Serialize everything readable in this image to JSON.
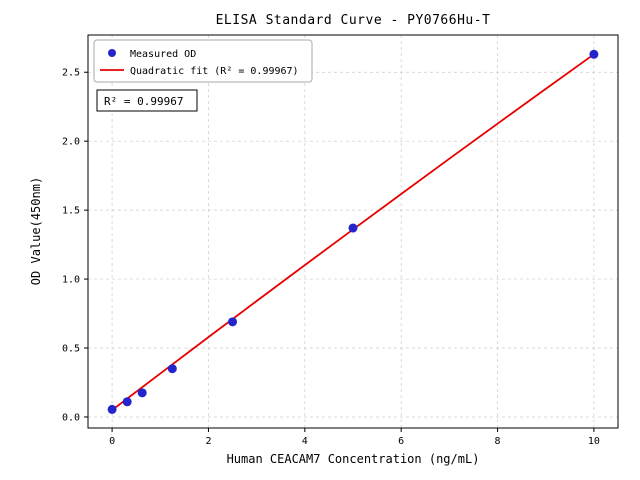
{
  "chart_data": {
    "type": "scatter",
    "title": "ELISA Standard Curve - PY0766Hu-T",
    "xlabel": "Human CEACAM7 Concentration (ng/mL)",
    "ylabel": "OD Value(450nm)",
    "xlim": [
      -0.5,
      10.5
    ],
    "ylim": [
      -0.08,
      2.77
    ],
    "x_ticks": [
      0,
      2,
      4,
      6,
      8,
      10
    ],
    "y_ticks": [
      0.0,
      0.5,
      1.0,
      1.5,
      2.0,
      2.5
    ],
    "grid": true,
    "grid_style": "dashed",
    "annotation": "R² = 0.99967",
    "colors": {
      "points": "#2424cc",
      "fit_line": "#e80000",
      "grid": "#cccccc",
      "frame": "#000000"
    },
    "legend": {
      "position": "upper-left",
      "entries": [
        {
          "label": "Measured OD",
          "marker": "dot",
          "color": "#2424cc"
        },
        {
          "label": "Quadratic fit (R² = 0.99967)",
          "marker": "line",
          "color": "#e80000"
        }
      ]
    },
    "series": [
      {
        "name": "Measured OD",
        "type": "scatter",
        "color": "#2424cc",
        "x": [
          0,
          0.313,
          0.625,
          1.25,
          2.5,
          5,
          10
        ],
        "y": [
          0.055,
          0.11,
          0.175,
          0.35,
          0.69,
          1.37,
          2.63
        ]
      },
      {
        "name": "Quadratic fit",
        "type": "line",
        "color": "#e80000",
        "x": [
          0,
          1,
          2,
          3,
          4,
          5,
          6,
          7,
          8,
          9,
          10
        ],
        "y": [
          0.05,
          0.315,
          0.579,
          0.841,
          1.101,
          1.36,
          1.617,
          1.873,
          2.127,
          2.379,
          2.63
        ]
      }
    ]
  }
}
